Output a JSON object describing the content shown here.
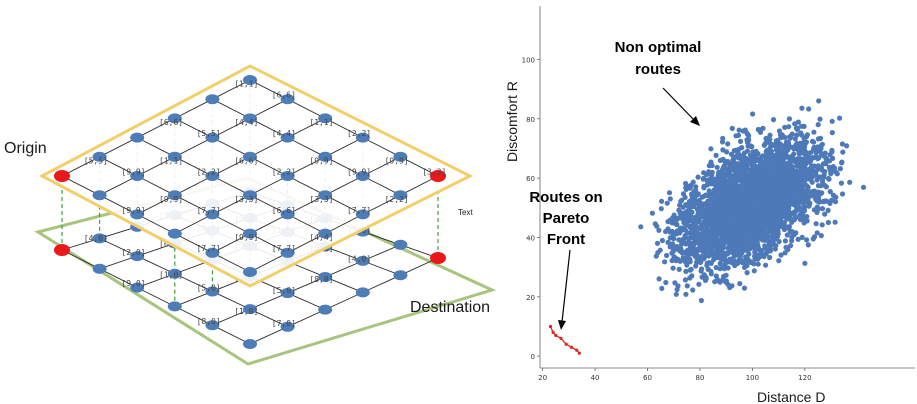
{
  "diagram": {
    "origin_label": "Origin",
    "destination_label": "Destination",
    "text_label": "Text",
    "upper_layer_edge_labels": [
      "[5,5]",
      "[9,9]",
      "[6,6]",
      "[5,5]",
      "[1,1]",
      "[6,6]",
      "[9,9]",
      "[1,1]",
      "[2,2]",
      "[4,4]",
      "[4,4]",
      "[9,9]",
      "[7,7]",
      "[6,6]",
      "[2,2]",
      "[1,1]",
      "[2,2]",
      "[7,7]",
      "[3,3]",
      "[6,6]",
      "[9,9]",
      "[9,9]",
      "[9,9]",
      "[7,7]",
      "[3,3]",
      "[7,7]",
      "[9,9]",
      "[3,3]",
      "[4,4]",
      "[2,2]",
      "[7,7]",
      "[5,5]",
      "[2,2]",
      "[6,6]",
      "[3,3]",
      "[6,6]"
    ],
    "lower_layer_edge_labels": [
      "[4,0]",
      "[2,0]",
      "[5,0]",
      "[8,0]",
      "[9,0]",
      "[6,0]",
      "[9,0]",
      "[6,0]",
      "[7,0]",
      "[5,0]",
      "[2,0]",
      "[1,0]",
      "[5,0]",
      "[3,0]",
      "[7,0]",
      "[6,0]",
      "[1,0]",
      "[8,0]",
      "[2,0]",
      "[5,0]",
      "[6,0]",
      "[4,0]",
      "[1,0]",
      "[7,0]",
      "[8,0]"
    ],
    "colors": {
      "upper_plane": "#f2cf6a",
      "lower_plane": "#a9c47f",
      "node": "#4d7cb6",
      "terminal": "#e8181b",
      "link": "#3aa33a"
    }
  },
  "chart_data": {
    "type": "scatter",
    "xlabel": "Distance  D",
    "ylabel": "Discomfort  R",
    "x_ticks": [
      "20",
      "40",
      "60",
      "80",
      "100",
      "120"
    ],
    "y_ticks": [
      "0",
      "20",
      "40",
      "60",
      "80",
      "100"
    ],
    "xlim": [
      19,
      162
    ],
    "ylim": [
      -4,
      118
    ],
    "series": [
      {
        "color": "#4e79b8",
        "cloud_center": [
          100,
          52
        ],
        "cloud_extent": "approx. x 25-150, y 0-115"
      },
      {
        "color": "#e0241c",
        "points": [
          [
            23,
            10
          ],
          [
            24,
            8
          ],
          [
            25,
            7
          ],
          [
            27,
            6
          ],
          [
            29,
            4
          ],
          [
            31,
            3
          ],
          [
            33,
            2
          ],
          [
            34,
            1
          ]
        ]
      }
    ],
    "annotations": [
      {
        "text_lines": [
          "Non optimal",
          "routes"
        ],
        "arrow_to": [
          78,
          78
        ]
      },
      {
        "text_lines": [
          "Routes on",
          "Pareto",
          "Front"
        ],
        "arrow_to": [
          25,
          9
        ]
      }
    ]
  }
}
